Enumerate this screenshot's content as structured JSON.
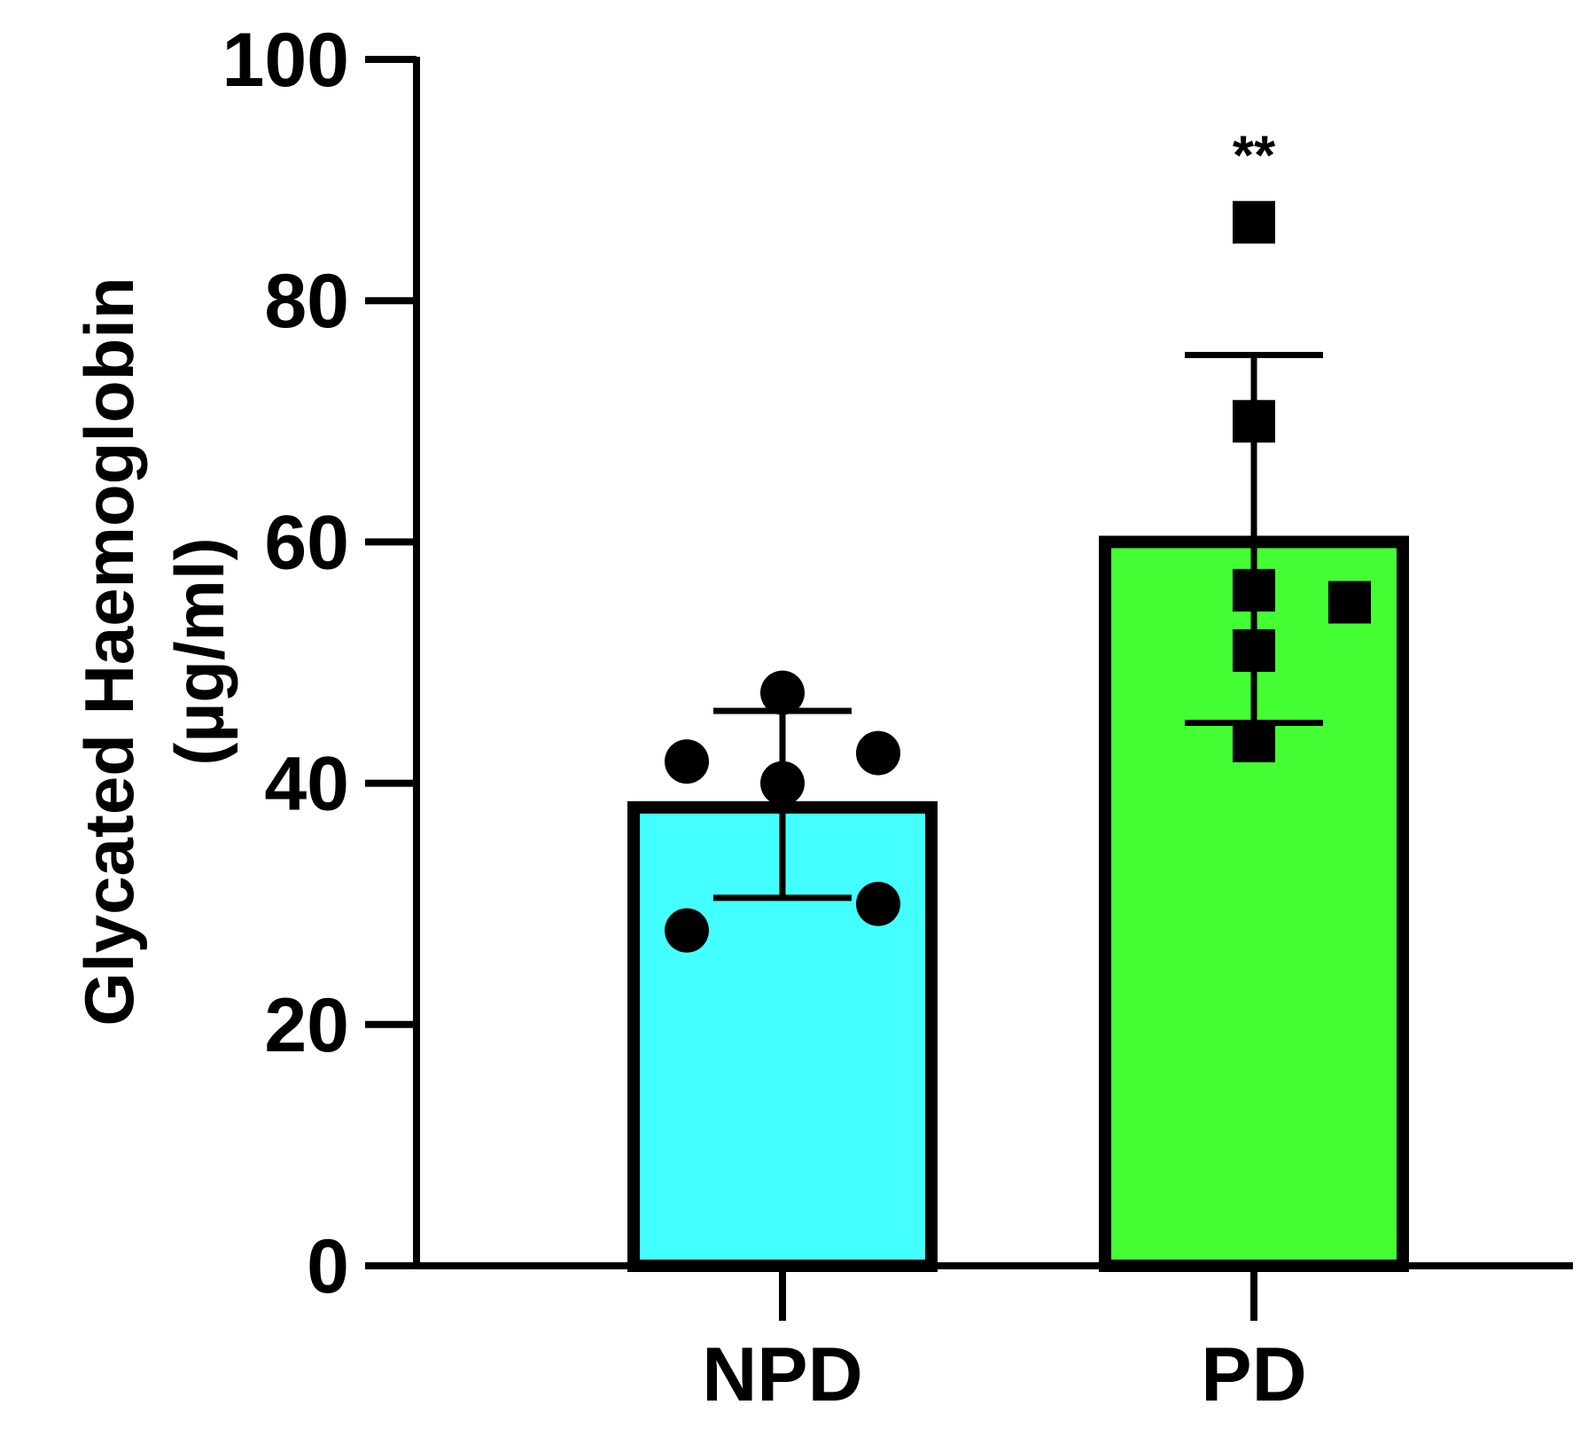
{
  "chart_data": {
    "type": "bar",
    "title": "",
    "xlabel": "",
    "ylabel": [
      "Glycated Haemoglobin",
      "(µg/ml)"
    ],
    "ylim": [
      0,
      100
    ],
    "yticks": [
      0,
      20,
      40,
      60,
      80,
      100
    ],
    "categories": [
      "NPD",
      "PD"
    ],
    "series": [
      {
        "name": "NPD",
        "mean": 38,
        "error_upper": 46,
        "error_lower": 30.5,
        "color": "#44ffff",
        "marker": "circle",
        "points": [
          {
            "offset": 0,
            "value": 47.5
          },
          {
            "offset": -1,
            "value": 41.8
          },
          {
            "offset": 1,
            "value": 42.5
          },
          {
            "offset": 0,
            "value": 40
          },
          {
            "offset": -1,
            "value": 27.8
          },
          {
            "offset": 1,
            "value": 30
          }
        ]
      },
      {
        "name": "PD",
        "mean": 60,
        "error_upper": 75.5,
        "error_lower": 45,
        "color": "#44ff33",
        "marker": "square",
        "points": [
          {
            "offset": 0,
            "value": 86.5
          },
          {
            "offset": 0,
            "value": 70
          },
          {
            "offset": 0,
            "value": 56
          },
          {
            "offset": 1,
            "value": 55
          },
          {
            "offset": 0,
            "value": 51
          },
          {
            "offset": 0,
            "value": 43.5
          }
        ]
      }
    ],
    "annotations": [
      {
        "text": "**",
        "category": "PD",
        "value": 94
      }
    ]
  }
}
